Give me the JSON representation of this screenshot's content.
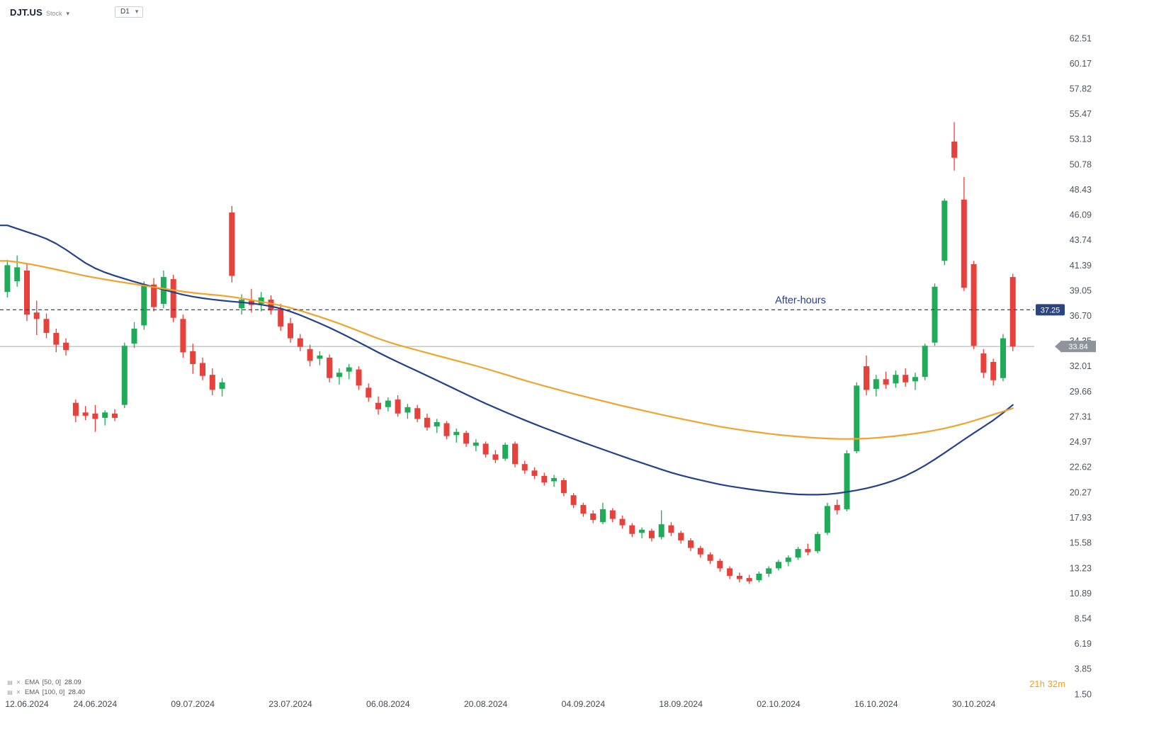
{
  "header": {
    "symbol": "DJT.US",
    "instrument_type": "Stock",
    "timeframe": "D1"
  },
  "icons": {
    "chevron_down": "▾",
    "ema_settings": "▤",
    "ema_remove": "✕"
  },
  "chart_data": {
    "type": "candlestick",
    "symbol": "DJT.US",
    "timeframe": "D1",
    "colors": {
      "up": "#1fab58",
      "down": "#e8403a",
      "ema50": "#f2a32d",
      "ema100": "#24418e",
      "after_hours": "#2c457e",
      "last_badge": "#8f949c",
      "axis_text": "#4d5560",
      "last_line": "#a8adb5"
    },
    "y_axis": {
      "min": 1.5,
      "max": 62.51,
      "ticks": [
        "62.51",
        "60.17",
        "57.82",
        "55.47",
        "53.13",
        "50.78",
        "48.43",
        "46.09",
        "43.74",
        "41.39",
        "39.05",
        "36.70",
        "34.35",
        "32.01",
        "29.66",
        "27.31",
        "24.97",
        "22.62",
        "20.27",
        "17.93",
        "15.58",
        "13.23",
        "10.89",
        "8.54",
        "6.19",
        "3.85",
        "1.50"
      ]
    },
    "x_axis": [
      {
        "index": 2,
        "label": "12.06.2024"
      },
      {
        "index": 9,
        "label": "24.06.2024"
      },
      {
        "index": 19,
        "label": "09.07.2024"
      },
      {
        "index": 29,
        "label": "23.07.2024"
      },
      {
        "index": 39,
        "label": "06.08.2024"
      },
      {
        "index": 49,
        "label": "20.08.2024"
      },
      {
        "index": 59,
        "label": "04.09.2024"
      },
      {
        "index": 69,
        "label": "18.09.2024"
      },
      {
        "index": 79,
        "label": "02.10.2024"
      },
      {
        "index": 89,
        "label": "16.10.2024"
      },
      {
        "index": 99,
        "label": "30.10.2024"
      }
    ],
    "candles": [
      [
        "10.06.2024",
        38.9,
        41.9,
        38.4,
        41.4
      ],
      [
        "11.06.2024",
        39.9,
        42.3,
        39.4,
        41.2
      ],
      [
        "12.06.2024",
        40.9,
        41.6,
        36.2,
        36.8
      ],
      [
        "13.06.2024",
        37.0,
        38.1,
        34.9,
        36.4
      ],
      [
        "14.06.2024",
        36.4,
        36.9,
        34.6,
        35.1
      ],
      [
        "17.06.2024",
        35.1,
        35.5,
        33.3,
        34.0
      ],
      [
        "18.06.2024",
        34.2,
        34.6,
        33.0,
        33.5
      ],
      [
        "20.06.2024",
        28.6,
        28.9,
        26.8,
        27.4
      ],
      [
        "21.06.2024",
        27.7,
        28.3,
        27.0,
        27.4
      ],
      [
        "24.06.2024",
        27.6,
        28.4,
        25.9,
        27.1
      ],
      [
        "25.06.2024",
        27.2,
        27.9,
        26.5,
        27.7
      ],
      [
        "26.06.2024",
        27.6,
        28.0,
        26.9,
        27.2
      ],
      [
        "27.06.2024",
        28.4,
        34.2,
        28.1,
        33.9
      ],
      [
        "28.06.2024",
        34.1,
        36.1,
        33.7,
        35.5
      ],
      [
        "01.07.2024",
        35.8,
        39.9,
        35.4,
        39.5
      ],
      [
        "02.07.2024",
        39.6,
        40.2,
        37.1,
        37.5
      ],
      [
        "03.07.2024",
        37.8,
        40.9,
        37.4,
        40.3
      ],
      [
        "05.07.2024",
        40.1,
        40.5,
        36.1,
        36.5
      ],
      [
        "08.07.2024",
        36.4,
        36.8,
        32.8,
        33.3
      ],
      [
        "09.07.2024",
        33.4,
        34.1,
        31.3,
        32.2
      ],
      [
        "10.07.2024",
        32.3,
        32.8,
        30.7,
        31.1
      ],
      [
        "11.07.2024",
        31.2,
        31.8,
        29.3,
        29.8
      ],
      [
        "12.07.2024",
        29.9,
        30.9,
        29.2,
        30.5
      ],
      [
        "15.07.2024",
        46.3,
        46.9,
        39.8,
        40.4
      ],
      [
        "16.07.2024",
        37.4,
        38.7,
        36.8,
        38.2
      ],
      [
        "17.07.2024",
        38.1,
        39.2,
        37.0,
        37.7
      ],
      [
        "18.07.2024",
        37.8,
        38.9,
        37.1,
        38.4
      ],
      [
        "19.07.2024",
        38.2,
        38.6,
        36.8,
        37.2
      ],
      [
        "22.07.2024",
        37.4,
        37.8,
        35.3,
        35.7
      ],
      [
        "23.07.2024",
        36.0,
        36.5,
        34.2,
        34.6
      ],
      [
        "24.07.2024",
        34.6,
        35.0,
        33.4,
        33.8
      ],
      [
        "25.07.2024",
        33.6,
        34.0,
        32.0,
        32.5
      ],
      [
        "26.07.2024",
        32.7,
        33.4,
        32.1,
        33.0
      ],
      [
        "29.07.2024",
        32.8,
        33.1,
        30.5,
        30.9
      ],
      [
        "30.07.2024",
        31.0,
        31.8,
        30.3,
        31.4
      ],
      [
        "31.07.2024",
        31.5,
        32.2,
        30.8,
        31.9
      ],
      [
        "01.08.2024",
        31.7,
        32.0,
        29.8,
        30.2
      ],
      [
        "02.08.2024",
        30.0,
        30.4,
        28.7,
        29.1
      ],
      [
        "05.08.2024",
        28.6,
        29.2,
        27.5,
        28.0
      ],
      [
        "06.08.2024",
        28.2,
        29.1,
        27.8,
        28.8
      ],
      [
        "07.08.2024",
        28.9,
        29.3,
        27.3,
        27.6
      ],
      [
        "08.08.2024",
        27.7,
        28.5,
        27.1,
        28.2
      ],
      [
        "09.08.2024",
        28.1,
        28.4,
        26.8,
        27.1
      ],
      [
        "12.08.2024",
        27.2,
        27.6,
        26.0,
        26.3
      ],
      [
        "13.08.2024",
        26.4,
        27.1,
        25.8,
        26.8
      ],
      [
        "14.08.2024",
        26.7,
        26.9,
        25.2,
        25.5
      ],
      [
        "15.08.2024",
        25.6,
        26.2,
        24.9,
        25.9
      ],
      [
        "16.08.2024",
        25.8,
        26.0,
        24.5,
        24.8
      ],
      [
        "19.08.2024",
        24.6,
        25.2,
        24.1,
        24.9
      ],
      [
        "20.08.2024",
        24.8,
        25.0,
        23.5,
        23.8
      ],
      [
        "21.08.2024",
        23.8,
        24.2,
        23.0,
        23.3
      ],
      [
        "22.08.2024",
        23.4,
        24.9,
        23.2,
        24.7
      ],
      [
        "23.08.2024",
        24.8,
        25.0,
        22.6,
        22.9
      ],
      [
        "26.08.2024",
        22.9,
        23.2,
        22.0,
        22.3
      ],
      [
        "27.08.2024",
        22.3,
        22.6,
        21.5,
        21.8
      ],
      [
        "28.08.2024",
        21.8,
        22.1,
        20.9,
        21.2
      ],
      [
        "29.08.2024",
        21.3,
        21.9,
        20.8,
        21.6
      ],
      [
        "30.08.2024",
        21.4,
        21.6,
        19.9,
        20.2
      ],
      [
        "03.09.2024",
        20.0,
        20.2,
        18.8,
        19.1
      ],
      [
        "04.09.2024",
        19.1,
        19.3,
        18.0,
        18.3
      ],
      [
        "05.09.2024",
        18.3,
        18.6,
        17.4,
        17.7
      ],
      [
        "06.09.2024",
        17.5,
        19.3,
        17.3,
        18.7
      ],
      [
        "09.09.2024",
        18.6,
        18.8,
        17.5,
        17.8
      ],
      [
        "10.09.2024",
        17.8,
        18.1,
        16.9,
        17.2
      ],
      [
        "11.09.2024",
        17.2,
        17.4,
        16.1,
        16.4
      ],
      [
        "12.09.2024",
        16.5,
        17.0,
        16.0,
        16.8
      ],
      [
        "13.09.2024",
        16.7,
        16.9,
        15.7,
        16.0
      ],
      [
        "16.09.2024",
        16.1,
        18.6,
        15.9,
        17.3
      ],
      [
        "17.09.2024",
        17.2,
        17.5,
        16.2,
        16.5
      ],
      [
        "18.09.2024",
        16.5,
        16.7,
        15.5,
        15.8
      ],
      [
        "19.09.2024",
        15.8,
        16.0,
        14.8,
        15.1
      ],
      [
        "20.09.2024",
        15.1,
        15.3,
        14.2,
        14.5
      ],
      [
        "23.09.2024",
        14.5,
        14.7,
        13.6,
        13.9
      ],
      [
        "24.09.2024",
        13.9,
        14.1,
        12.9,
        13.2
      ],
      [
        "25.09.2024",
        13.2,
        13.4,
        12.2,
        12.5
      ],
      [
        "26.09.2024",
        12.5,
        12.8,
        11.9,
        12.2
      ],
      [
        "27.09.2024",
        12.3,
        12.6,
        11.75,
        12.0
      ],
      [
        "30.09.2024",
        12.1,
        12.9,
        11.9,
        12.7
      ],
      [
        "01.10.2024",
        12.7,
        13.4,
        12.4,
        13.2
      ],
      [
        "02.10.2024",
        13.2,
        14.0,
        13.0,
        13.8
      ],
      [
        "03.10.2024",
        13.8,
        14.4,
        13.4,
        14.2
      ],
      [
        "04.10.2024",
        14.2,
        15.2,
        14.0,
        15.0
      ],
      [
        "07.10.2024",
        15.0,
        15.5,
        14.4,
        14.7
      ],
      [
        "08.10.2024",
        14.8,
        16.6,
        14.6,
        16.4
      ],
      [
        "09.10.2024",
        16.5,
        19.3,
        16.3,
        19.0
      ],
      [
        "10.10.2024",
        19.1,
        19.6,
        18.2,
        18.6
      ],
      [
        "11.10.2024",
        18.7,
        24.2,
        18.5,
        23.9
      ],
      [
        "14.10.2024",
        24.1,
        30.5,
        23.9,
        30.2
      ],
      [
        "15.10.2024",
        32.0,
        33.0,
        29.3,
        29.8
      ],
      [
        "16.10.2024",
        29.9,
        31.2,
        29.2,
        30.8
      ],
      [
        "17.10.2024",
        30.8,
        31.5,
        29.9,
        30.3
      ],
      [
        "18.10.2024",
        30.4,
        31.6,
        30.0,
        31.2
      ],
      [
        "21.10.2024",
        31.2,
        31.8,
        30.1,
        30.5
      ],
      [
        "22.10.2024",
        30.6,
        31.4,
        29.8,
        31.0
      ],
      [
        "23.10.2024",
        31.0,
        34.1,
        30.7,
        33.9
      ],
      [
        "24.10.2024",
        34.2,
        39.7,
        33.9,
        39.4
      ],
      [
        "25.10.2024",
        41.8,
        47.6,
        41.4,
        47.4
      ],
      [
        "28.10.2024",
        52.9,
        54.7,
        50.2,
        51.4
      ],
      [
        "29.10.2024",
        47.5,
        49.6,
        39.0,
        39.3
      ],
      [
        "30.10.2024",
        41.5,
        41.8,
        33.6,
        33.9
      ],
      [
        "31.10.2024",
        33.2,
        33.6,
        30.9,
        31.4
      ],
      [
        "01.11.2024",
        32.4,
        32.7,
        30.2,
        30.7
      ],
      [
        "04.11.2024",
        30.9,
        35.0,
        30.6,
        34.6
      ],
      [
        "05.11.2024",
        40.3,
        40.6,
        33.4,
        33.84
      ]
    ],
    "overlays": {
      "ema50": {
        "label": "EMA",
        "params": "[50, 0]",
        "value": "28.09",
        "color": "#f2a32d",
        "anchors": [
          [
            0,
            41.8
          ],
          [
            2,
            41.6
          ],
          [
            9,
            40.2
          ],
          [
            14,
            39.5
          ],
          [
            19,
            38.8
          ],
          [
            23,
            38.5
          ],
          [
            29,
            37.5
          ],
          [
            34,
            36.0
          ],
          [
            39,
            34.2
          ],
          [
            44,
            33.0
          ],
          [
            49,
            31.8
          ],
          [
            54,
            30.4
          ],
          [
            59,
            29.2
          ],
          [
            64,
            28.1
          ],
          [
            69,
            27.1
          ],
          [
            74,
            26.2
          ],
          [
            79,
            25.6
          ],
          [
            83,
            25.3
          ],
          [
            86,
            25.2
          ],
          [
            89,
            25.3
          ],
          [
            92,
            25.6
          ],
          [
            95,
            26.0
          ],
          [
            97,
            26.4
          ],
          [
            99,
            26.9
          ],
          [
            101,
            27.5
          ],
          [
            103,
            28.09
          ]
        ]
      },
      "ema100": {
        "label": "EMA",
        "params": "[100, 0]",
        "value": "28.40",
        "color": "#24418e",
        "anchors": [
          [
            0,
            45.1
          ],
          [
            2,
            44.5
          ],
          [
            5,
            43.6
          ],
          [
            9,
            40.9
          ],
          [
            14,
            39.6
          ],
          [
            19,
            38.4
          ],
          [
            23,
            38.0
          ],
          [
            26,
            37.8
          ],
          [
            29,
            37.2
          ],
          [
            34,
            35.2
          ],
          [
            39,
            32.8
          ],
          [
            44,
            30.7
          ],
          [
            49,
            28.5
          ],
          [
            54,
            26.6
          ],
          [
            59,
            24.9
          ],
          [
            64,
            23.3
          ],
          [
            69,
            21.8
          ],
          [
            74,
            20.8
          ],
          [
            79,
            20.2
          ],
          [
            82,
            20.0
          ],
          [
            85,
            20.1
          ],
          [
            89,
            20.8
          ],
          [
            92,
            21.7
          ],
          [
            94,
            22.7
          ],
          [
            96,
            23.9
          ],
          [
            98,
            25.2
          ],
          [
            100,
            26.4
          ],
          [
            102,
            27.5
          ],
          [
            103,
            28.4
          ]
        ]
      }
    },
    "levels": {
      "after_hours": {
        "label": "After-hours",
        "price": 37.25,
        "badge": "37.25"
      },
      "last_price": {
        "price": 33.84,
        "badge": "33.84"
      }
    },
    "countdown": "21h 32m"
  }
}
